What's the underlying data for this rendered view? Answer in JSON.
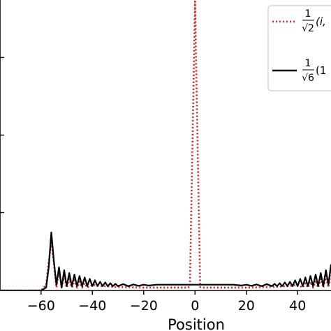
{
  "chart_data": {
    "type": "line",
    "xlabel": "Position",
    "ylabel": "",
    "xlim": [
      -76,
      53
    ],
    "ylim": [
      0,
      1
    ],
    "x_ticks": [
      "−60",
      "−40",
      "−20",
      "0",
      "20",
      "40"
    ],
    "x_tick_values": [
      -60,
      -40,
      -20,
      0,
      20,
      40
    ],
    "y_tick_fractions": [
      0.268,
      0.535,
      0.802
    ],
    "grid": false,
    "legend": {
      "placement": "top-right",
      "entries": [
        {
          "fraction": "1/√2",
          "tail": "(i,",
          "style": "dotted",
          "color": "#cc2222"
        },
        {
          "fraction": "1/√6",
          "tail": "(1",
          "style": "solid",
          "color": "#000000"
        }
      ]
    },
    "series": [
      {
        "style": "dotted",
        "color": "#cc2222",
        "points": [
          [
            -76,
            0
          ],
          [
            -60,
            0
          ],
          [
            -58,
            0.02
          ],
          [
            -57,
            0.1
          ],
          [
            -56,
            0.17
          ],
          [
            -55,
            0.09
          ],
          [
            -54,
            0.01
          ],
          [
            -53,
            0.07
          ],
          [
            -52,
            0.01
          ],
          [
            -51,
            0.05
          ],
          [
            -50,
            0.01
          ],
          [
            -49,
            0.04
          ],
          [
            -48,
            0.01
          ],
          [
            -47,
            0.035
          ],
          [
            -46,
            0.01
          ],
          [
            -45,
            0.03
          ],
          [
            -44,
            0.01
          ],
          [
            -43,
            0.025
          ],
          [
            -42,
            0.01
          ],
          [
            -40,
            0.02
          ],
          [
            -36,
            0.015
          ],
          [
            -30,
            0.012
          ],
          [
            -20,
            0.01
          ],
          [
            -10,
            0.01
          ],
          [
            -3,
            0.01
          ],
          [
            -2,
            0.012
          ],
          [
            0,
            0.995
          ],
          [
            2,
            0.012
          ],
          [
            3,
            0.01
          ],
          [
            10,
            0.01
          ],
          [
            20,
            0.01
          ],
          [
            30,
            0.012
          ],
          [
            36,
            0.015
          ],
          [
            40,
            0.02
          ],
          [
            42,
            0.01
          ],
          [
            43,
            0.025
          ],
          [
            44,
            0.01
          ],
          [
            45,
            0.03
          ],
          [
            46,
            0.01
          ],
          [
            47,
            0.035
          ],
          [
            48,
            0.01
          ],
          [
            49,
            0.04
          ],
          [
            50,
            0.01
          ],
          [
            51,
            0.05
          ],
          [
            52,
            0.01
          ],
          [
            53,
            0.07
          ]
        ]
      },
      {
        "style": "solid",
        "color": "#000000",
        "points": [
          [
            -76,
            0
          ],
          [
            -60,
            0
          ],
          [
            -58,
            0.01
          ],
          [
            -57,
            0.08
          ],
          [
            -56,
            0.2
          ],
          [
            -55,
            0.1
          ],
          [
            -54,
            0.02
          ],
          [
            -53,
            0.08
          ],
          [
            -52,
            0.01
          ],
          [
            -51,
            0.07
          ],
          [
            -50,
            0.015
          ],
          [
            -49,
            0.06
          ],
          [
            -48,
            0.015
          ],
          [
            -47,
            0.055
          ],
          [
            -46,
            0.015
          ],
          [
            -45,
            0.05
          ],
          [
            -44,
            0.015
          ],
          [
            -43,
            0.045
          ],
          [
            -42,
            0.015
          ],
          [
            -41,
            0.04
          ],
          [
            -40,
            0.015
          ],
          [
            -39,
            0.035
          ],
          [
            -38,
            0.015
          ],
          [
            -37,
            0.03
          ],
          [
            -36,
            0.015
          ],
          [
            -35,
            0.028
          ],
          [
            -34,
            0.015
          ],
          [
            -33,
            0.025
          ],
          [
            -32,
            0.015
          ],
          [
            -31,
            0.023
          ],
          [
            -30,
            0.015
          ],
          [
            -28,
            0.022
          ],
          [
            -26,
            0.015
          ],
          [
            -24,
            0.021
          ],
          [
            -22,
            0.016
          ],
          [
            -20,
            0.02
          ],
          [
            -18,
            0.017
          ],
          [
            -15,
            0.02
          ],
          [
            -10,
            0.02
          ],
          [
            0,
            0.02
          ],
          [
            10,
            0.02
          ],
          [
            15,
            0.02
          ],
          [
            18,
            0.017
          ],
          [
            20,
            0.02
          ],
          [
            22,
            0.016
          ],
          [
            24,
            0.021
          ],
          [
            26,
            0.015
          ],
          [
            28,
            0.022
          ],
          [
            30,
            0.015
          ],
          [
            31,
            0.023
          ],
          [
            32,
            0.015
          ],
          [
            33,
            0.025
          ],
          [
            34,
            0.015
          ],
          [
            35,
            0.028
          ],
          [
            36,
            0.015
          ],
          [
            37,
            0.03
          ],
          [
            38,
            0.015
          ],
          [
            39,
            0.035
          ],
          [
            40,
            0.015
          ],
          [
            41,
            0.04
          ],
          [
            42,
            0.015
          ],
          [
            43,
            0.045
          ],
          [
            44,
            0.015
          ],
          [
            45,
            0.05
          ],
          [
            46,
            0.015
          ],
          [
            47,
            0.055
          ],
          [
            48,
            0.015
          ],
          [
            49,
            0.06
          ],
          [
            50,
            0.015
          ],
          [
            51,
            0.07
          ],
          [
            52,
            0.02
          ],
          [
            53,
            0.09
          ]
        ]
      }
    ]
  }
}
